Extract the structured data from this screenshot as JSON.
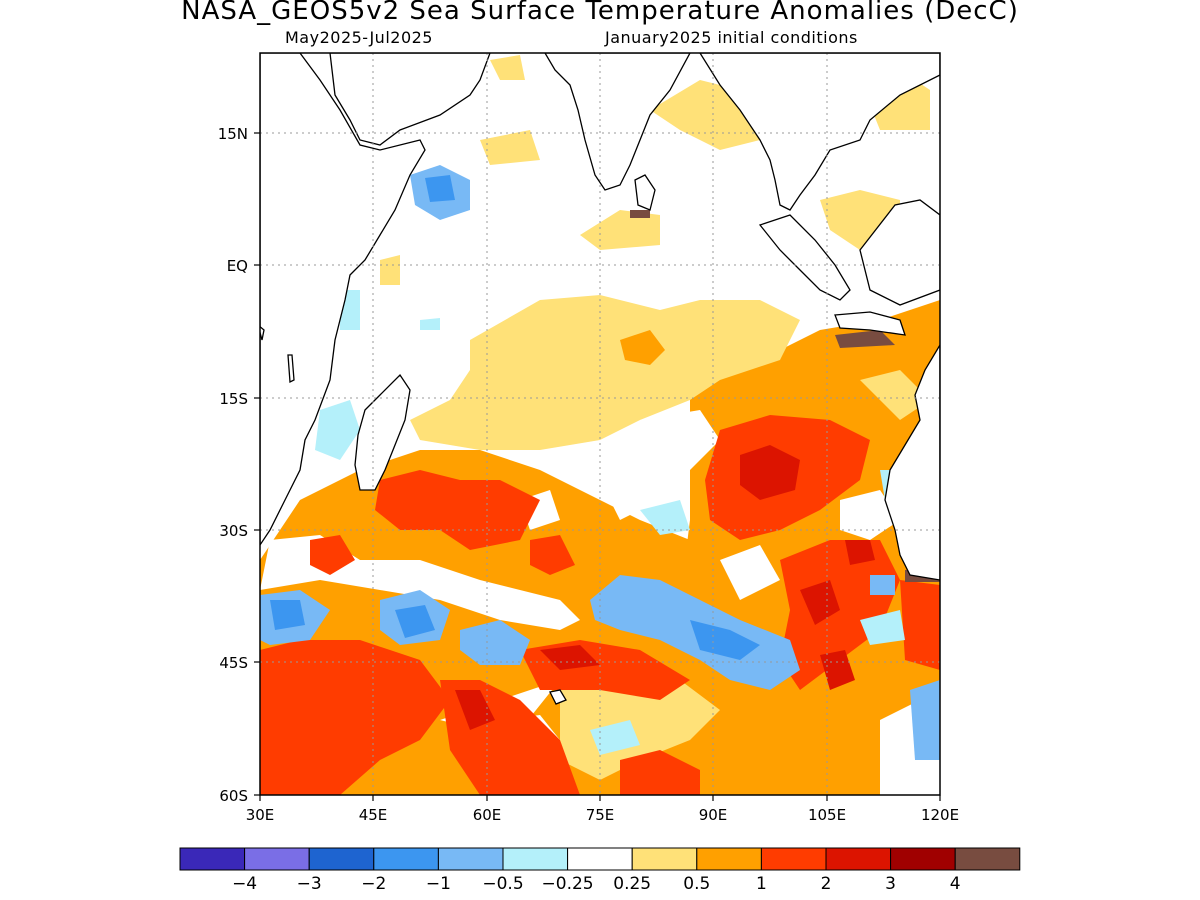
{
  "header": {
    "title": "NASA_GEOS5v2 Sea Surface Temperature Anomalies (DecC)",
    "period": "May2025-Jul2025",
    "init": "January2025 initial conditions"
  },
  "map": {
    "lon_range": [
      30,
      120
    ],
    "lat_range": [
      -60,
      24
    ],
    "lat_ticks": [
      "15N",
      "EQ",
      "15S",
      "30S",
      "45S",
      "60S"
    ],
    "lon_ticks": [
      "30E",
      "45E",
      "60E",
      "75E",
      "90E",
      "105E",
      "120E"
    ],
    "grid": true
  },
  "colorbar": {
    "labels": [
      "-4",
      "-3",
      "-2",
      "-1",
      "-0.5",
      "-0.25",
      "0.25",
      "0.5",
      "1",
      "2",
      "3",
      "4"
    ],
    "colors": [
      "#3a28b8",
      "#7a6ee6",
      "#1e64d0",
      "#3c96f0",
      "#78b9f5",
      "#b4f0fa",
      "#ffffff",
      "#ffe178",
      "#ffa000",
      "#ff3c00",
      "#dc1400",
      "#a00000",
      "#784c40"
    ]
  }
}
